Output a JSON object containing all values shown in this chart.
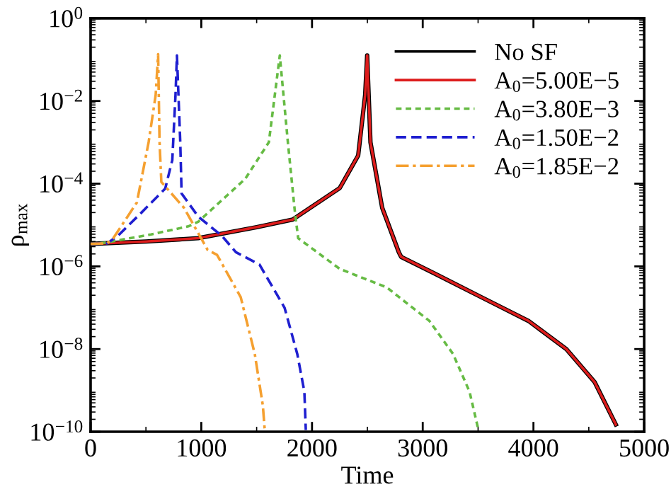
{
  "chart_data": {
    "type": "line",
    "xlabel": "Time",
    "ylabel": "ρ$_{max}$",
    "log": "y",
    "grid": false,
    "legend": "top right",
    "marker": "none",
    "xlim": [
      0,
      5000
    ],
    "xticks": [
      0,
      1000,
      2000,
      3000,
      4000,
      5000
    ],
    "ylim": [
      1e-10,
      1
    ],
    "yticks": [
      {
        "value": 1e-10,
        "label": "10$^{−10}$"
      },
      {
        "value": 1e-08,
        "label": "10$^{−8}$"
      },
      {
        "value": 1e-06,
        "label": "10$^{−6}$"
      },
      {
        "value": 0.0001,
        "label": "10$^{−4}$"
      },
      {
        "value": 0.01,
        "label": "10$^{−2}$"
      },
      {
        "value": 1,
        "label": "10$^{0}$"
      }
    ],
    "series": [
      {
        "name": "No SF",
        "color": "#000000",
        "line_style": "solid",
        "x": [
          0,
          500,
          972,
          1500,
          1825,
          2250,
          2417,
          2480,
          2498,
          2528,
          2634,
          2784,
          2805,
          3104,
          3529,
          3955,
          4297,
          4552,
          4744
        ],
        "values": [
          3.5e-06,
          4e-06,
          4.8e-06,
          8.9e-06,
          1.35e-05,
          7.8e-05,
          0.00048,
          0.014,
          0.126,
          0.001,
          2.6e-05,
          2.2e-06,
          1.7e-06,
          6.8e-07,
          1.8e-07,
          4.8e-08,
          1e-08,
          1.6e-09,
          1.5e-10
        ]
      },
      {
        "name": "A$_{0}$=5.00E−5",
        "color": "#dd1c1c",
        "line_style": "solid",
        "x": [
          0,
          500,
          972,
          1500,
          1825,
          2250,
          2417,
          2480,
          2498,
          2528,
          2634,
          2784,
          2805,
          3104,
          3529,
          3955,
          4297,
          4552,
          4744
        ],
        "values": [
          3.5e-06,
          4e-06,
          4.8e-06,
          8.9e-06,
          1.35e-05,
          7.8e-05,
          0.00048,
          0.014,
          0.126,
          0.001,
          2.6e-05,
          2.2e-06,
          1.7e-06,
          6.8e-07,
          1.8e-07,
          4.8e-08,
          1e-08,
          1.6e-09,
          1.5e-10
        ]
      },
      {
        "name": "A$_{0}$=3.80E−3",
        "color": "#66bb44",
        "line_style": "dotted",
        "x": [
          0,
          119,
          546,
          883,
          972,
          1396,
          1610,
          1709,
          1782,
          1846,
          1875,
          2250,
          2675,
          3060,
          3274,
          3423,
          3500
        ],
        "values": [
          3.5e-06,
          3.7e-06,
          5.9e-06,
          9.3e-06,
          1.2e-05,
          0.00013,
          0.001,
          0.126,
          0.001,
          2e-05,
          4.8e-06,
          8.7e-07,
          3.1e-07,
          4.8e-08,
          7.6e-09,
          9.3e-10,
          1.2e-10
        ]
      },
      {
        "name": "A$_{0}$=1.50E−2",
        "color": "#1f1fd0",
        "line_style": "dashed",
        "x": [
          0,
          150,
          247,
          460,
          674,
          738,
          767,
          780,
          810,
          822,
          972,
          1185,
          1313,
          1526,
          1752,
          1867,
          1931,
          1944
        ],
        "values": [
          3.5e-06,
          3.6e-06,
          5.5e-06,
          2e-05,
          7.6e-05,
          0.00037,
          0.014,
          0.126,
          0.001,
          5.8e-05,
          1.6e-05,
          5.5e-06,
          2.2e-06,
          1.1e-06,
          1e-07,
          7.6e-09,
          9.3e-10,
          1.1e-10
        ]
      },
      {
        "name": "A$_{0}$=1.85E−2",
        "color": "#f5a030",
        "line_style": "dashdot",
        "x": [
          0,
          150,
          205,
          418,
          524,
          588,
          610,
          623,
          639,
          844,
          1057,
          1142,
          1356,
          1483,
          1556,
          1573
        ],
        "values": [
          3.5e-06,
          3.6e-06,
          4.8e-06,
          3.5e-05,
          0.001,
          0.014,
          0.135,
          0.001,
          0.00011,
          2.6e-05,
          2.5e-06,
          1.9e-06,
          1.8e-07,
          7.6e-09,
          4.3e-10,
          1.1e-10
        ]
      }
    ]
  }
}
